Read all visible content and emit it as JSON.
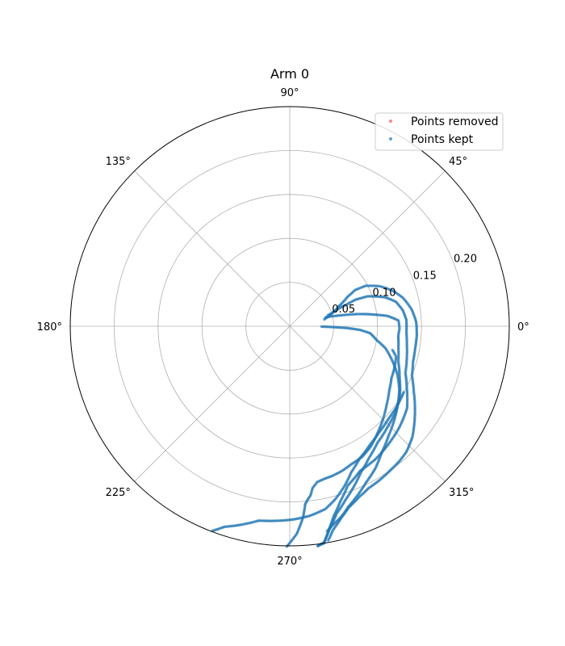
{
  "chart_data": {
    "type": "scatter",
    "projection": "polar",
    "title": "Arm 0",
    "rlim": [
      0,
      0.25
    ],
    "r_ticks": [
      0.05,
      0.1,
      0.15,
      0.2
    ],
    "r_tick_labels": [
      "0.05",
      "0.10",
      "0.15",
      "0.20"
    ],
    "theta_ticks_deg": [
      0,
      45,
      90,
      135,
      180,
      225,
      270,
      315
    ],
    "theta_tick_labels": [
      "0°",
      "45°",
      "90°",
      "135°",
      "180°",
      "225°",
      "270°",
      "315°"
    ],
    "grid": true,
    "legend": {
      "placement": "top-right",
      "entries": [
        "Points removed",
        "Points kept"
      ]
    },
    "colors": {
      "removed": "#ff5555",
      "kept": "#1f77b4",
      "grid": "#b0b0b0"
    },
    "series": [
      {
        "name": "Points removed",
        "points": []
      },
      {
        "name": "Points kept",
        "traces": [
          [
            [
              11.2,
              0.04
            ],
            [
              14,
              0.045
            ],
            [
              22,
              0.06
            ],
            [
              27,
              0.074
            ],
            [
              29,
              0.085
            ],
            [
              28,
              0.098
            ],
            [
              24,
              0.112
            ],
            [
              19,
              0.124
            ],
            [
              14,
              0.133
            ],
            [
              8,
              0.14
            ],
            [
              2,
              0.144
            ],
            [
              -4,
              0.145
            ],
            [
              -10,
              0.145
            ],
            [
              -16,
              0.146
            ],
            [
              -22,
              0.15
            ],
            [
              -28,
              0.16
            ],
            [
              -33,
              0.17
            ],
            [
              -38,
              0.18
            ],
            [
              -42,
              0.188
            ],
            [
              -47,
              0.195
            ],
            [
              -51,
              0.198
            ],
            [
              -55,
              0.2
            ],
            [
              -60,
              0.203
            ],
            [
              -64,
              0.205
            ],
            [
              -68,
              0.21
            ],
            [
              -72,
              0.217
            ],
            [
              -75,
              0.226
            ],
            [
              -78,
              0.237
            ],
            [
              -80,
              0.249
            ]
          ],
          [
            [
              16,
              0.045
            ],
            [
              20,
              0.06
            ],
            [
              22,
              0.08
            ],
            [
              21,
              0.095
            ],
            [
              17,
              0.113
            ],
            [
              13,
              0.124
            ],
            [
              8,
              0.13
            ],
            [
              3,
              0.133
            ],
            [
              -3,
              0.133
            ],
            [
              -9,
              0.135
            ],
            [
              -15,
              0.138
            ],
            [
              -22,
              0.142
            ],
            [
              -28,
              0.151
            ],
            [
              -35,
              0.163
            ],
            [
              -43,
              0.17
            ],
            [
              -50,
              0.175
            ],
            [
              -57,
              0.18
            ],
            [
              -64,
              0.183
            ],
            [
              -70,
              0.193
            ],
            [
              -74,
              0.208
            ],
            [
              -77,
              0.222
            ],
            [
              -79,
              0.235
            ],
            [
              -81,
              0.25
            ],
            [
              -83,
              0.252
            ]
          ],
          [
            [
              14,
              0.042
            ],
            [
              12,
              0.06
            ],
            [
              10,
              0.08
            ],
            [
              8,
              0.096
            ],
            [
              6,
              0.112
            ],
            [
              3,
              0.124
            ],
            [
              -1,
              0.125
            ],
            [
              -5,
              0.124
            ],
            [
              -11,
              0.126
            ],
            [
              -18,
              0.13
            ],
            [
              -25,
              0.138
            ],
            [
              -32,
              0.148
            ],
            [
              -39,
              0.155
            ],
            [
              -46,
              0.16
            ],
            [
              -53,
              0.166
            ],
            [
              -59,
              0.175
            ],
            [
              -64,
              0.185
            ],
            [
              -68,
              0.196
            ],
            [
              -72,
              0.207
            ],
            [
              -76,
              0.22
            ],
            [
              -79,
              0.236
            ],
            [
              -81,
              0.249
            ],
            [
              -83,
              0.253
            ]
          ],
          [
            [
              -0.6,
              0.036
            ],
            [
              -1.2,
              0.05
            ],
            [
              -1.8,
              0.065
            ],
            [
              -3,
              0.08
            ],
            [
              -5,
              0.092
            ],
            [
              -9,
              0.1
            ],
            [
              -13,
              0.112
            ],
            [
              -18,
              0.122
            ],
            [
              -24,
              0.134
            ],
            [
              -30,
              0.144
            ],
            [
              -36,
              0.152
            ],
            [
              -42,
              0.16
            ],
            [
              -48,
              0.168
            ],
            [
              -54,
              0.178
            ],
            [
              -59,
              0.189
            ],
            [
              -64,
              0.198
            ],
            [
              -68,
              0.207
            ],
            [
              -72,
              0.216
            ],
            [
              -75,
              0.225
            ],
            [
              -78,
              0.232
            ],
            [
              -80,
              0.238
            ]
          ],
          [
            [
              -13,
              0.12
            ],
            [
              -16,
              0.126
            ],
            [
              -21,
              0.128
            ],
            [
              -27,
              0.13
            ],
            [
              -33,
              0.135
            ],
            [
              -39,
              0.142
            ],
            [
              -45,
              0.15
            ],
            [
              -51,
              0.158
            ],
            [
              -56,
              0.165
            ],
            [
              -61,
              0.17
            ],
            [
              -66,
              0.172
            ],
            [
              -70,
              0.175
            ],
            [
              -74,
              0.177
            ],
            [
              -77,
              0.178
            ],
            [
              -80,
              0.18
            ],
            [
              -82,
              0.186
            ],
            [
              -83,
              0.194
            ],
            [
              -84,
              0.198
            ],
            [
              -85,
              0.203
            ],
            [
              -86,
              0.218
            ],
            [
              -88,
              0.236
            ],
            [
              -91,
              0.252
            ]
          ],
          [
            [
              -30,
              0.15
            ],
            [
              -36,
              0.152
            ],
            [
              -43,
              0.154
            ],
            [
              -50,
              0.158
            ],
            [
              -56,
              0.163
            ],
            [
              -62,
              0.17
            ],
            [
              -67,
              0.18
            ],
            [
              -71,
              0.192
            ],
            [
              -75,
              0.203
            ],
            [
              -79,
              0.212
            ],
            [
              -84,
              0.217
            ],
            [
              -89,
              0.22
            ],
            [
              -94,
              0.222
            ],
            [
              -99,
              0.224
            ],
            [
              -104,
              0.233
            ],
            [
              -108,
              0.24
            ],
            [
              -111,
              0.25
            ]
          ]
        ]
      }
    ]
  }
}
